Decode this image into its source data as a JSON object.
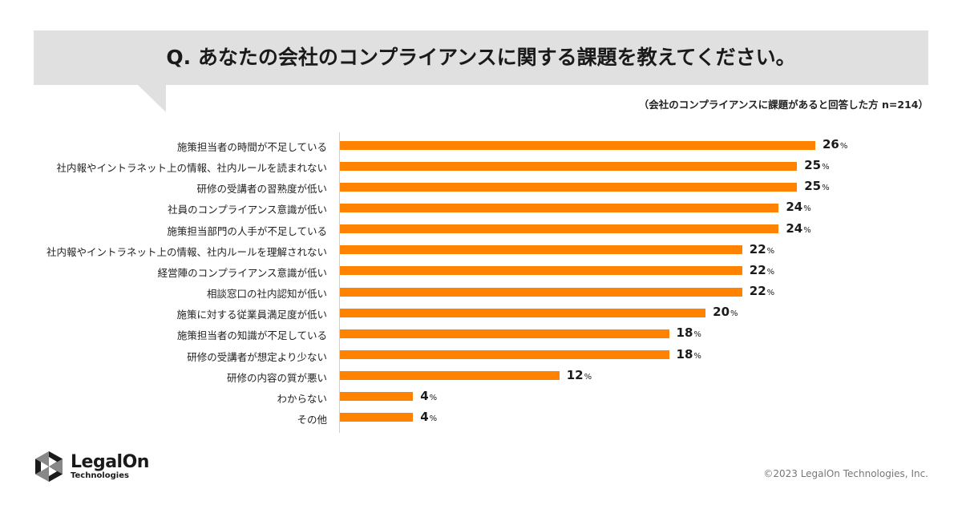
{
  "chart_data": {
    "type": "bar",
    "orientation": "horizontal",
    "title": "Q. あなたの会社のコンプライアンスに関する課題を教えてください。",
    "note": "（会社のコンプライアンスに課題があると回答した方 n=214）",
    "categories": [
      "施策担当者の時間が不足している",
      "社内報やイントラネット上の情報、社内ルールを読まれない",
      "研修の受講者の習熟度が低い",
      "社員のコンプライアンス意識が低い",
      "施策担当部門の人手が不足している",
      "社内報やイントラネット上の情報、社内ルールを理解されない",
      "経営陣のコンプライアンス意識が低い",
      "相談窓口の社内認知が低い",
      "施策に対する従業員満足度が低い",
      "施策担当者の知識が不足している",
      "研修の受講者が想定より少ない",
      "研修の内容の質が悪い",
      "わからない",
      "その他"
    ],
    "values": [
      26,
      25,
      25,
      24,
      24,
      22,
      22,
      22,
      20,
      18,
      18,
      12,
      4,
      4
    ],
    "value_unit": "%",
    "xlim": [
      0,
      26
    ],
    "bar_color": "#ff8200",
    "grid": false
  },
  "footer": {
    "logo_name": "LegalOn",
    "logo_sub": "Technologies",
    "copyright": "©2023 LegalOn Technologies, Inc."
  }
}
